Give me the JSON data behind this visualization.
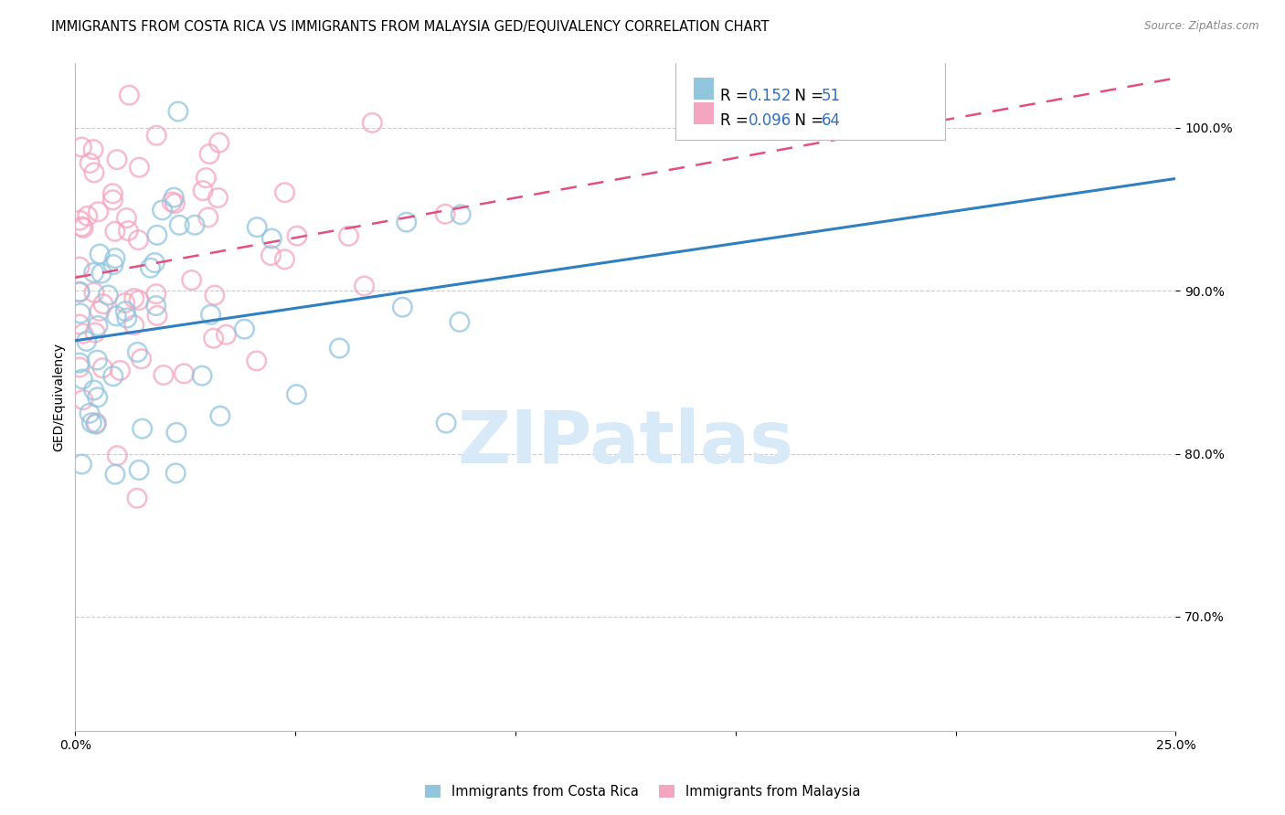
{
  "title": "IMMIGRANTS FROM COSTA RICA VS IMMIGRANTS FROM MALAYSIA GED/EQUIVALENCY CORRELATION CHART",
  "source": "Source: ZipAtlas.com",
  "ylabel": "GED/Equivalency",
  "ytick_values": [
    1.0,
    0.9,
    0.8,
    0.7
  ],
  "ytick_labels": [
    "100.0%",
    "90.0%",
    "80.0%",
    "70.0%"
  ],
  "xlim": [
    0.0,
    0.25
  ],
  "ylim": [
    0.63,
    1.04
  ],
  "blue_color": "#92c5de",
  "pink_color": "#f4a6c0",
  "blue_line_color": "#3080c0",
  "pink_line_color": "#e05080",
  "grid_color": "#cccccc",
  "background_color": "#ffffff",
  "title_fontsize": 10.5,
  "axis_label_fontsize": 10,
  "tick_fontsize": 10,
  "legend_fontsize": 12,
  "watermark_text": "ZIPatlas",
  "watermark_color": "#d8eaf8",
  "legend_R1": "0.152",
  "legend_N1": "51",
  "legend_R2": "0.096",
  "legend_N2": "64",
  "cr_seed": 42,
  "my_seed": 99
}
